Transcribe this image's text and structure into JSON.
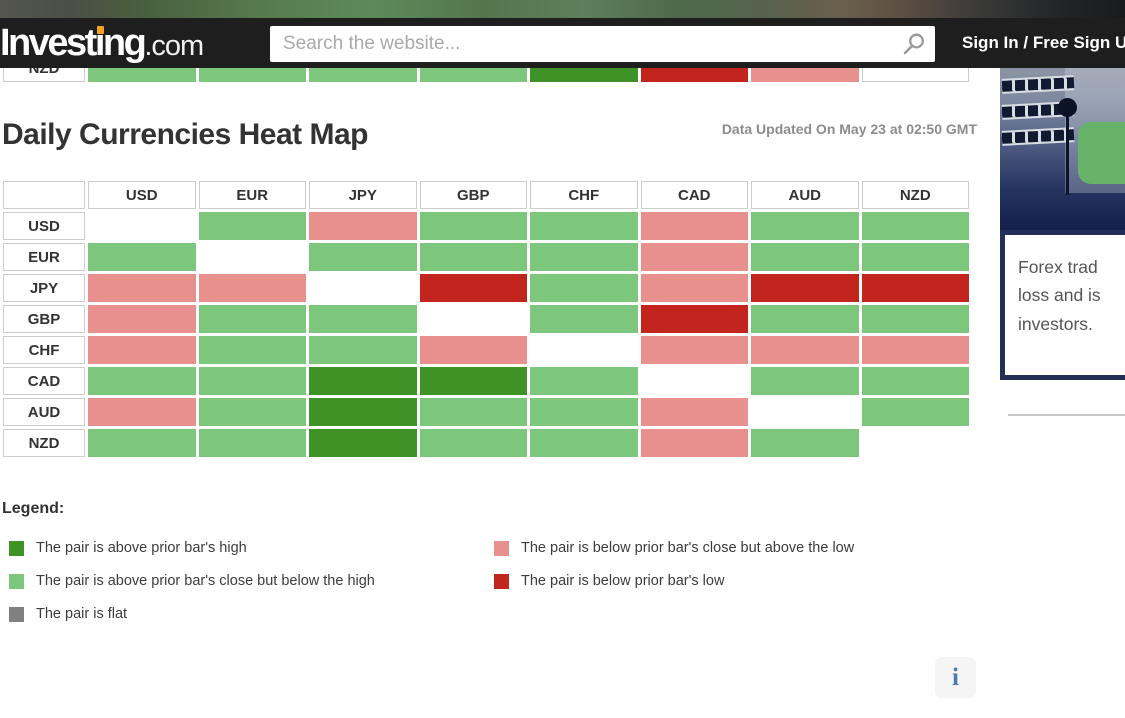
{
  "top_bar": {
    "logo_pre": "Invest",
    "logo_i": "ı",
    "logo_post": "ng",
    "logo_tld": ".com",
    "logo_dot_color": "#f7a21d",
    "search_placeholder": "Search the website...",
    "signin_label": "Sign In / Free Sign Up"
  },
  "page": {
    "title": "Daily Currencies Heat Map",
    "updated_label": "Data Updated On May 23 at 02:50 GMT"
  },
  "chart_data": {
    "type": "heatmap",
    "columns": [
      "USD",
      "EUR",
      "JPY",
      "GBP",
      "CHF",
      "CAD",
      "AUD",
      "NZD"
    ],
    "partial_top_row": {
      "label": "NZD",
      "cells": [
        "above_close",
        "above_close",
        "above_close",
        "above_close",
        "above_high",
        "below_low",
        "below_close",
        "self"
      ]
    },
    "rows": [
      {
        "label": "USD",
        "cells": [
          "self",
          "above_close",
          "below_close",
          "above_close",
          "above_close",
          "below_close",
          "above_close",
          "above_close"
        ]
      },
      {
        "label": "EUR",
        "cells": [
          "above_close",
          "self",
          "above_close",
          "above_close",
          "above_close",
          "below_close",
          "above_close",
          "above_close"
        ]
      },
      {
        "label": "JPY",
        "cells": [
          "below_close",
          "below_close",
          "self",
          "below_low",
          "above_close",
          "below_close",
          "below_low",
          "below_low"
        ]
      },
      {
        "label": "GBP",
        "cells": [
          "below_close",
          "above_close",
          "above_close",
          "self",
          "above_close",
          "below_low",
          "above_close",
          "above_close"
        ]
      },
      {
        "label": "CHF",
        "cells": [
          "below_close",
          "above_close",
          "above_close",
          "below_close",
          "self",
          "below_close",
          "below_close",
          "below_close"
        ]
      },
      {
        "label": "CAD",
        "cells": [
          "above_close",
          "above_close",
          "above_high",
          "above_high",
          "above_close",
          "self",
          "above_close",
          "above_close"
        ]
      },
      {
        "label": "AUD",
        "cells": [
          "below_close",
          "above_close",
          "above_high",
          "above_close",
          "above_close",
          "below_close",
          "self",
          "above_close"
        ]
      },
      {
        "label": "NZD",
        "cells": [
          "above_close",
          "above_close",
          "above_high",
          "above_close",
          "above_close",
          "below_close",
          "above_close",
          "self"
        ]
      }
    ],
    "colors": {
      "above_high": "#3e9226",
      "above_close": "#7cc77b",
      "flat": "#808080",
      "below_close": "#e8908d",
      "below_low": "#c1251e",
      "self": "#ffffff"
    }
  },
  "legend": {
    "title": "Legend:",
    "items": [
      {
        "key": "above_high",
        "label": "The pair is above prior bar's high"
      },
      {
        "key": "above_close",
        "label": "The pair is above prior bar's close but below the high"
      },
      {
        "key": "flat",
        "label": "The pair is flat"
      },
      {
        "key": "below_close",
        "label": "The pair is below prior bar's close but above the low"
      },
      {
        "key": "below_low",
        "label": "The pair is below prior bar's low"
      }
    ]
  },
  "sidebar": {
    "ad_lines": [
      "Forex trad",
      "loss and is",
      "investors."
    ]
  },
  "footer": {
    "info_glyph": "i"
  }
}
